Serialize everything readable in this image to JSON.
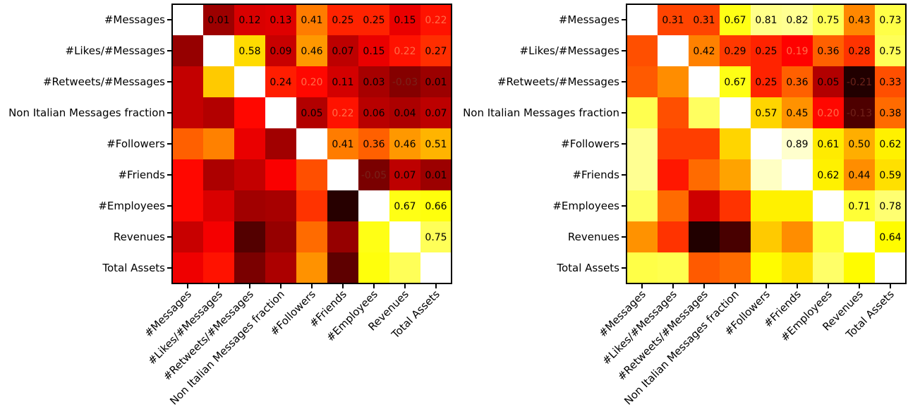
{
  "chart_data": [
    {
      "type": "heatmap",
      "title": "",
      "xlabel": "",
      "ylabel": "",
      "colormap": "hot",
      "vmin": -0.25,
      "vmax": 0.95,
      "diagonal": "blank",
      "categories": [
        "#Messages",
        "#Likes/#Messages",
        "#Retweets/#Messages",
        "Non Italian Messages fraction",
        "#Followers",
        "#Friends",
        "#Employees",
        "Revenues",
        "Total Assets"
      ],
      "upper_labels": [
        [
          "",
          "0.01",
          "0.12",
          "0.13",
          "0.41",
          "0.25",
          "0.25",
          "0.15",
          "0.22"
        ],
        [
          "",
          "",
          "0.58",
          "0.09",
          "0.46",
          "0.07",
          "0.15",
          "0.22",
          "0.27"
        ],
        [
          "",
          "",
          "",
          "0.24",
          "0.20",
          "0.11",
          "0.03",
          "-0.03",
          "0.01"
        ],
        [
          "",
          "",
          "",
          "",
          "0.05",
          "0.22",
          "0.06",
          "0.04",
          "0.07"
        ],
        [
          "",
          "",
          "",
          "",
          "",
          "0.41",
          "0.36",
          "0.46",
          "0.51"
        ],
        [
          "",
          "",
          "",
          "",
          "",
          "",
          "-0.05",
          "0.07",
          "0.01"
        ],
        [
          "",
          "",
          "",
          "",
          "",
          "",
          "",
          "0.67",
          "0.66"
        ],
        [
          "",
          "",
          "",
          "",
          "",
          "",
          "",
          "",
          "0.75"
        ],
        [
          "",
          "",
          "",
          "",
          "",
          "",
          "",
          "",
          ""
        ]
      ],
      "values": [
        [
          null,
          0.01,
          0.12,
          0.13,
          0.41,
          0.25,
          0.25,
          0.15,
          0.22
        ],
        [
          0.0,
          null,
          0.58,
          0.09,
          0.46,
          0.07,
          0.15,
          0.22,
          0.27
        ],
        [
          0.08,
          0.55,
          null,
          0.24,
          0.2,
          0.11,
          0.03,
          -0.03,
          0.01
        ],
        [
          0.08,
          0.05,
          0.2,
          null,
          0.05,
          0.22,
          0.06,
          0.04,
          0.07
        ],
        [
          0.36,
          0.42,
          0.15,
          0.02,
          null,
          0.41,
          0.36,
          0.46,
          0.51
        ],
        [
          0.2,
          0.04,
          0.08,
          0.18,
          0.33,
          null,
          -0.05,
          0.07,
          0.01
        ],
        [
          0.2,
          0.12,
          0.02,
          0.03,
          0.28,
          -0.2,
          null,
          0.67,
          0.66
        ],
        [
          0.09,
          0.17,
          -0.12,
          0.0,
          0.38,
          0.0,
          0.67,
          null,
          0.75
        ],
        [
          0.16,
          0.22,
          -0.05,
          0.04,
          0.45,
          -0.1,
          0.66,
          0.75,
          null
        ]
      ]
    },
    {
      "type": "heatmap",
      "title": "",
      "xlabel": "",
      "ylabel": "",
      "colormap": "hot",
      "vmin": -0.25,
      "vmax": 0.95,
      "diagonal": "blank",
      "categories": [
        "#Messages",
        "#Likes/#Messages",
        "#Retweets/#Messages",
        "Non Italian Messages fraction",
        "#Followers",
        "#Friends",
        "#Employees",
        "Revenues",
        "Total Assets"
      ],
      "upper_labels": [
        [
          "",
          "0.31",
          "0.31",
          "0.67",
          "0.81",
          "0.82",
          "0.75",
          "0.43",
          "0.73"
        ],
        [
          "",
          "",
          "0.42",
          "0.29",
          "0.25",
          "0.19",
          "0.36",
          "0.28",
          "0.75"
        ],
        [
          "",
          "",
          "",
          "0.67",
          "0.25",
          "0.36",
          "0.05",
          "-0.21",
          "0.33"
        ],
        [
          "",
          "",
          "",
          "",
          "0.57",
          "0.45",
          "0.20",
          "-0.13",
          "0.38"
        ],
        [
          "",
          "",
          "",
          "",
          "",
          "0.89",
          "0.61",
          "0.50",
          "0.62"
        ],
        [
          "",
          "",
          "",
          "",
          "",
          "",
          "0.62",
          "0.44",
          "0.59"
        ],
        [
          "",
          "",
          "",
          "",
          "",
          "",
          "",
          "0.71",
          "0.78"
        ],
        [
          "",
          "",
          "",
          "",
          "",
          "",
          "",
          "",
          "0.64"
        ],
        [
          "",
          "",
          "",
          "",
          "",
          "",
          "",
          "",
          ""
        ]
      ],
      "values": [
        [
          null,
          0.31,
          0.31,
          0.67,
          0.81,
          0.82,
          0.75,
          0.43,
          0.73
        ],
        [
          0.33,
          null,
          0.42,
          0.29,
          0.25,
          0.19,
          0.36,
          0.28,
          0.75
        ],
        [
          0.35,
          0.44,
          null,
          0.67,
          0.25,
          0.36,
          0.05,
          -0.21,
          0.33
        ],
        [
          0.74,
          0.33,
          0.76,
          null,
          0.57,
          0.45,
          0.2,
          -0.13,
          0.38
        ],
        [
          0.82,
          0.3,
          0.3,
          0.57,
          null,
          0.89,
          0.61,
          0.5,
          0.62
        ],
        [
          0.82,
          0.23,
          0.38,
          0.48,
          0.88,
          null,
          0.62,
          0.44,
          0.59
        ],
        [
          0.76,
          0.38,
          0.1,
          0.28,
          0.62,
          0.62,
          null,
          0.71,
          0.78
        ],
        [
          0.45,
          0.28,
          -0.21,
          -0.14,
          0.55,
          0.44,
          0.72,
          null,
          0.64
        ],
        [
          0.73,
          0.74,
          0.35,
          0.38,
          0.64,
          0.59,
          0.77,
          0.64,
          null
        ]
      ]
    }
  ]
}
